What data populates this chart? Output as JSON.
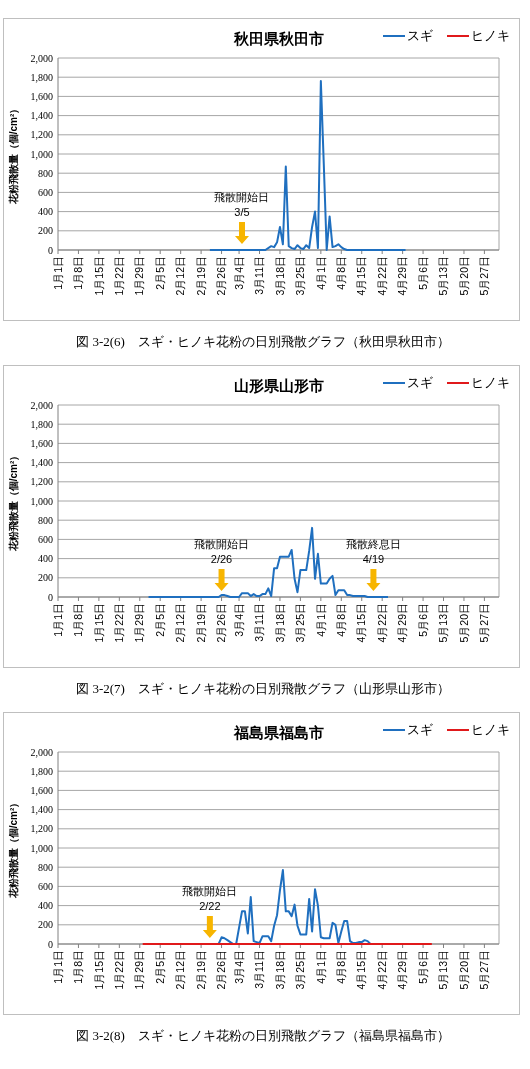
{
  "chart_data": [
    {
      "type": "line",
      "title": "秋田県秋田市",
      "ylabel": "花粉飛散量（個/cm²）",
      "legend": "top right",
      "grid": "y",
      "marker": "none",
      "line_style": "solid",
      "xlim": [
        "--01-01",
        "--06-01"
      ],
      "xticks": [
        {
          "value": "--01-01",
          "label": "1月1日"
        },
        {
          "value": "--01-08",
          "label": "1月8日"
        },
        {
          "value": "--01-15",
          "label": "1月15日"
        },
        {
          "value": "--01-22",
          "label": "1月22日"
        },
        {
          "value": "--01-29",
          "label": "1月29日"
        },
        {
          "value": "--02-05",
          "label": "2月5日"
        },
        {
          "value": "--02-12",
          "label": "2月12日"
        },
        {
          "value": "--02-19",
          "label": "2月19日"
        },
        {
          "value": "--02-26",
          "label": "2月26日"
        },
        {
          "value": "--03-04",
          "label": "3月4日"
        },
        {
          "value": "--03-11",
          "label": "3月11日"
        },
        {
          "value": "--03-18",
          "label": "3月18日"
        },
        {
          "value": "--03-25",
          "label": "3月25日"
        },
        {
          "value": "--04-01",
          "label": "4月1日"
        },
        {
          "value": "--04-08",
          "label": "4月8日"
        },
        {
          "value": "--04-15",
          "label": "4月15日"
        },
        {
          "value": "--04-22",
          "label": "4月22日"
        },
        {
          "value": "--04-29",
          "label": "4月29日"
        },
        {
          "value": "--05-06",
          "label": "5月6日"
        },
        {
          "value": "--05-13",
          "label": "5月13日"
        },
        {
          "value": "--05-20",
          "label": "5月20日"
        },
        {
          "value": "--05-27",
          "label": "5月27日"
        }
      ],
      "ylim": [
        0,
        2000
      ],
      "yticks": [
        0,
        200,
        400,
        600,
        800,
        {
          "value": 1000,
          "label": "1,000"
        },
        {
          "value": 1200,
          "label": "1,200"
        },
        {
          "value": 1400,
          "label": "1,400"
        },
        {
          "value": 1600,
          "label": "1,600"
        },
        {
          "value": 1800,
          "label": "1,800"
        },
        {
          "value": 2000,
          "label": "2,000"
        }
      ],
      "series": [
        {
          "name": "スギ",
          "color": "#1f6fbf",
          "x": [
            "--02-22",
            "--03-13",
            "--03-15",
            "--03-16",
            "--03-17",
            "--03-18",
            "--03-19",
            "--03-20",
            "--03-21",
            "--03-22",
            "--03-23",
            "--03-24",
            "--03-25",
            "--03-26",
            "--03-27",
            "--03-28",
            "--03-29",
            "--03-30",
            "--03-31",
            "--04-01",
            "--04-02",
            "--04-03",
            "--04-04",
            "--04-05",
            "--04-06",
            "--04-07",
            "--04-08",
            "--04-09",
            "--04-10",
            "--04-30"
          ],
          "values": [
            0,
            0,
            40,
            30,
            80,
            240,
            60,
            870,
            40,
            20,
            10,
            50,
            20,
            10,
            50,
            20,
            240,
            400,
            20,
            1760,
            900,
            0,
            350,
            30,
            40,
            60,
            30,
            10,
            0,
            0
          ]
        },
        {
          "name": "ヒノキ",
          "color": "#e0191b"
        }
      ],
      "annotations": [
        {
          "text": "飛散開始日\n3/5",
          "x": "--03-05",
          "y": 0
        },
        "図 3-2(6)　スギ・ヒノキ花粉の日別飛散グラフ（秋田県秋田市）"
      ]
    },
    {
      "type": "line",
      "title": "山形県山形市",
      "ylabel": "花粉飛散量（個/cm²）",
      "legend": "top right",
      "grid": "y",
      "marker": "none",
      "line_style": "solid",
      "xlim": [
        "--01-01",
        "--06-01"
      ],
      "xticks": [
        {
          "value": "--01-01",
          "label": "1月1日"
        },
        {
          "value": "--01-08",
          "label": "1月8日"
        },
        {
          "value": "--01-15",
          "label": "1月15日"
        },
        {
          "value": "--01-22",
          "label": "1月22日"
        },
        {
          "value": "--01-29",
          "label": "1月29日"
        },
        {
          "value": "--02-05",
          "label": "2月5日"
        },
        {
          "value": "--02-12",
          "label": "2月12日"
        },
        {
          "value": "--02-19",
          "label": "2月19日"
        },
        {
          "value": "--02-26",
          "label": "2月26日"
        },
        {
          "value": "--03-04",
          "label": "3月4日"
        },
        {
          "value": "--03-11",
          "label": "3月11日"
        },
        {
          "value": "--03-18",
          "label": "3月18日"
        },
        {
          "value": "--03-25",
          "label": "3月25日"
        },
        {
          "value": "--04-01",
          "label": "4月1日"
        },
        {
          "value": "--04-08",
          "label": "4月8日"
        },
        {
          "value": "--04-15",
          "label": "4月15日"
        },
        {
          "value": "--04-22",
          "label": "4月22日"
        },
        {
          "value": "--04-29",
          "label": "4月29日"
        },
        {
          "value": "--05-06",
          "label": "5月6日"
        },
        {
          "value": "--05-13",
          "label": "5月13日"
        },
        {
          "value": "--05-20",
          "label": "5月20日"
        },
        {
          "value": "--05-27",
          "label": "5月27日"
        }
      ],
      "ylim": [
        0,
        2000
      ],
      "yticks": [
        0,
        200,
        400,
        600,
        800,
        {
          "value": 1000,
          "label": "1,000"
        },
        {
          "value": 1200,
          "label": "1,200"
        },
        {
          "value": 1400,
          "label": "1,400"
        },
        {
          "value": 1600,
          "label": "1,600"
        },
        {
          "value": 1800,
          "label": "1,800"
        },
        {
          "value": 2000,
          "label": "2,000"
        }
      ],
      "series": [
        {
          "name": "スギ",
          "color": "#1f6fbf",
          "x": [
            "--02-01",
            "--02-25",
            "--02-26",
            "--02-27",
            "--02-28",
            "--03-01",
            "--03-04",
            "--03-05",
            "--03-06",
            "--03-07",
            "--03-08",
            "--03-09",
            "--03-10",
            "--03-11",
            "--03-12",
            "--03-13",
            "--03-14",
            "--03-15",
            "--03-16",
            "--03-17",
            "--03-18",
            "--03-19",
            "--03-20",
            "--03-21",
            "--03-22",
            "--03-23",
            "--03-24",
            "--03-25",
            "--03-26",
            "--03-27",
            "--03-28",
            "--03-29",
            "--03-30",
            "--03-31",
            "--04-01",
            "--04-02",
            "--04-03",
            "--04-04",
            "--04-05",
            "--04-06",
            "--04-07",
            "--04-08",
            "--04-09",
            "--04-10",
            "--04-11",
            "--04-12",
            "--04-16",
            "--04-17",
            "--04-24"
          ],
          "values": [
            0,
            0,
            20,
            20,
            10,
            0,
            0,
            40,
            40,
            40,
            10,
            30,
            10,
            10,
            30,
            30,
            90,
            10,
            300,
            300,
            420,
            420,
            420,
            420,
            490,
            190,
            50,
            280,
            280,
            280,
            480,
            720,
            190,
            450,
            140,
            140,
            140,
            190,
            220,
            20,
            70,
            70,
            70,
            20,
            20,
            10,
            10,
            0,
            0
          ]
        },
        {
          "name": "ヒノキ",
          "color": "#e0191b"
        }
      ],
      "annotations": [
        {
          "text": "飛散開始日\n2/26",
          "x": "--02-26",
          "y": 0
        },
        {
          "text": "飛散終息日\n4/19",
          "x": "--04-19",
          "y": 0
        },
        "図 3-2(7)　スギ・ヒノキ花粉の日別飛散グラフ（山形県山形市）"
      ]
    },
    {
      "type": "line",
      "title": "福島県福島市",
      "ylabel": "花粉飛散量（個/cm²）",
      "legend": "top right",
      "grid": "y",
      "marker": "none",
      "line_style": "solid",
      "xlim": [
        "--01-01",
        "--06-01"
      ],
      "xticks": [
        {
          "value": "--01-01",
          "label": "1月1日"
        },
        {
          "value": "--01-08",
          "label": "1月8日"
        },
        {
          "value": "--01-15",
          "label": "1月15日"
        },
        {
          "value": "--01-22",
          "label": "1月22日"
        },
        {
          "value": "--01-29",
          "label": "1月29日"
        },
        {
          "value": "--02-05",
          "label": "2月5日"
        },
        {
          "value": "--02-12",
          "label": "2月12日"
        },
        {
          "value": "--02-19",
          "label": "2月19日"
        },
        {
          "value": "--02-26",
          "label": "2月26日"
        },
        {
          "value": "--03-04",
          "label": "3月4日"
        },
        {
          "value": "--03-11",
          "label": "3月11日"
        },
        {
          "value": "--03-18",
          "label": "3月18日"
        },
        {
          "value": "--03-25",
          "label": "3月25日"
        },
        {
          "value": "--04-01",
          "label": "4月1日"
        },
        {
          "value": "--04-08",
          "label": "4月8日"
        },
        {
          "value": "--04-15",
          "label": "4月15日"
        },
        {
          "value": "--04-22",
          "label": "4月22日"
        },
        {
          "value": "--04-29",
          "label": "4月29日"
        },
        {
          "value": "--05-06",
          "label": "5月6日"
        },
        {
          "value": "--05-13",
          "label": "5月13日"
        },
        {
          "value": "--05-20",
          "label": "5月20日"
        },
        {
          "value": "--05-27",
          "label": "5月27日"
        }
      ],
      "ylim": [
        0,
        2000
      ],
      "yticks": [
        0,
        200,
        400,
        600,
        800,
        {
          "value": 1000,
          "label": "1,000"
        },
        {
          "value": 1200,
          "label": "1,200"
        },
        {
          "value": 1400,
          "label": "1,400"
        },
        {
          "value": 1600,
          "label": "1,600"
        },
        {
          "value": 1800,
          "label": "1,800"
        },
        {
          "value": 2000,
          "label": "2,000"
        }
      ],
      "series": [
        {
          "name": "スギ",
          "color": "#1f6fbf",
          "x": [
            "--02-25",
            "--02-26",
            "--02-27",
            "--02-28",
            "--03-01",
            "--03-02",
            "--03-03",
            "--03-04",
            "--03-05",
            "--03-06",
            "--03-07",
            "--03-08",
            "--03-09",
            "--03-10",
            "--03-11",
            "--03-12",
            "--03-13",
            "--03-14",
            "--03-15",
            "--03-16",
            "--03-17",
            "--03-18",
            "--03-19",
            "--03-20",
            "--03-21",
            "--03-22",
            "--03-23",
            "--03-24",
            "--03-25",
            "--03-26",
            "--03-27",
            "--03-28",
            "--03-29",
            "--03-30",
            "--03-31",
            "--04-01",
            "--04-02",
            "--04-03",
            "--04-04",
            "--04-05",
            "--04-06",
            "--04-07",
            "--04-08",
            "--04-09",
            "--04-10",
            "--04-11",
            "--04-12",
            "--04-13",
            "--04-14",
            "--04-15",
            "--04-16",
            "--04-17",
            "--04-18"
          ],
          "values": [
            0,
            70,
            60,
            40,
            20,
            0,
            0,
            170,
            340,
            340,
            110,
            490,
            30,
            20,
            10,
            80,
            80,
            80,
            30,
            190,
            300,
            560,
            770,
            340,
            340,
            290,
            410,
            190,
            100,
            100,
            100,
            470,
            130,
            570,
            400,
            70,
            60,
            60,
            60,
            220,
            200,
            10,
            130,
            240,
            240,
            30,
            10,
            10,
            20,
            20,
            40,
            30,
            0
          ]
        },
        {
          "name": "ヒノキ",
          "color": "#e0191b",
          "x": [
            "--01-30",
            "--05-09"
          ],
          "values": [
            0,
            0
          ]
        }
      ],
      "annotations": [
        {
          "text": "飛散開始日\n2/22",
          "x": "--02-22",
          "y": 0
        },
        "図 3-2(8)　スギ・ヒノキ花粉の日別飛散グラフ（福島県福島市）"
      ]
    }
  ]
}
